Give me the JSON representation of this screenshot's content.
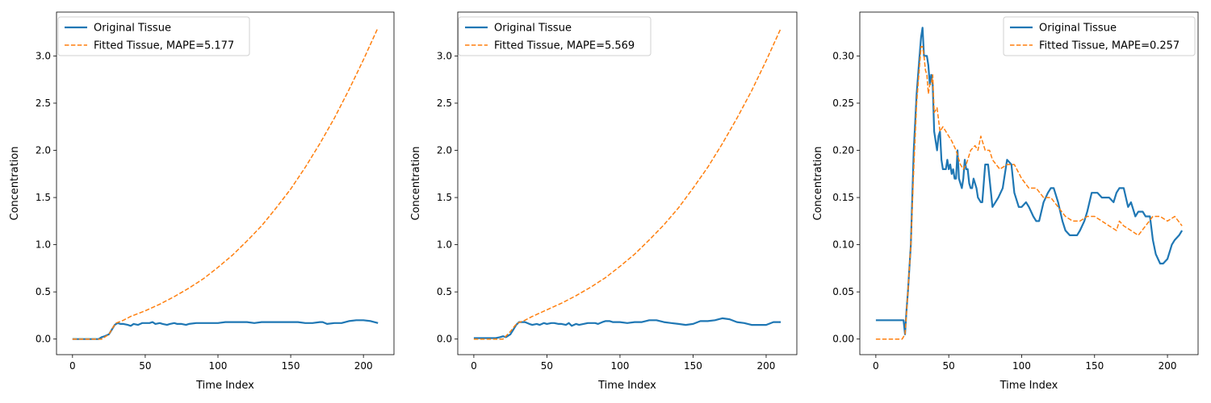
{
  "chart_data": [
    {
      "type": "line",
      "xlabel": "Time Index",
      "ylabel": "Concentration",
      "xlim": [
        -11,
        221
      ],
      "ylim": [
        -0.165,
        3.465
      ],
      "xticks": [
        0,
        50,
        100,
        150,
        200
      ],
      "xtick_labels": [
        "0",
        "50",
        "100",
        "150",
        "200"
      ],
      "yticks": [
        0,
        0.5,
        1.0,
        1.5,
        2.0,
        2.5,
        3.0
      ],
      "ytick_labels": [
        "0.0",
        "0.5",
        "1.0",
        "1.5",
        "2.0",
        "2.5",
        "3.0"
      ],
      "legend_position": "upper-left",
      "grid": false,
      "series": [
        {
          "name": "Original Tissue",
          "color": "#1f77b4",
          "style": "solid",
          "x": [
            0,
            5,
            10,
            15,
            18,
            20,
            22,
            25,
            27,
            29,
            31,
            33,
            35,
            38,
            40,
            42,
            45,
            48,
            50,
            53,
            55,
            57,
            60,
            62,
            65,
            67,
            70,
            72,
            75,
            78,
            80,
            85,
            90,
            95,
            100,
            105,
            110,
            115,
            120,
            125,
            130,
            135,
            140,
            145,
            150,
            155,
            160,
            165,
            170,
            172,
            175,
            180,
            185,
            190,
            195,
            200,
            205,
            210
          ],
          "y": [
            0.0,
            0.0,
            0.0,
            0.0,
            0.0,
            0.02,
            0.03,
            0.05,
            0.1,
            0.15,
            0.17,
            0.16,
            0.16,
            0.15,
            0.14,
            0.16,
            0.15,
            0.17,
            0.17,
            0.17,
            0.18,
            0.16,
            0.17,
            0.16,
            0.15,
            0.16,
            0.17,
            0.16,
            0.16,
            0.15,
            0.16,
            0.17,
            0.17,
            0.17,
            0.17,
            0.18,
            0.18,
            0.18,
            0.18,
            0.17,
            0.18,
            0.18,
            0.18,
            0.18,
            0.18,
            0.18,
            0.17,
            0.17,
            0.18,
            0.18,
            0.16,
            0.17,
            0.17,
            0.19,
            0.2,
            0.2,
            0.19,
            0.17
          ]
        },
        {
          "name": "Fitted Tissue, MAPE=5.177",
          "color": "#ff7f0e",
          "style": "dashed",
          "x": [
            0,
            10,
            20,
            25,
            28,
            30,
            35,
            40,
            50,
            60,
            70,
            80,
            90,
            100,
            110,
            120,
            130,
            140,
            150,
            160,
            170,
            180,
            190,
            200,
            210
          ],
          "y": [
            0.0,
            0.0,
            0.0,
            0.05,
            0.13,
            0.17,
            0.2,
            0.24,
            0.3,
            0.37,
            0.45,
            0.54,
            0.64,
            0.76,
            0.89,
            1.04,
            1.2,
            1.39,
            1.59,
            1.82,
            2.07,
            2.34,
            2.64,
            2.96,
            3.3
          ]
        }
      ]
    },
    {
      "type": "line",
      "xlabel": "Time Index",
      "ylabel": "Concentration",
      "xlim": [
        -11,
        221
      ],
      "ylim": [
        -0.165,
        3.465
      ],
      "xticks": [
        0,
        50,
        100,
        150,
        200
      ],
      "xtick_labels": [
        "0",
        "50",
        "100",
        "150",
        "200"
      ],
      "yticks": [
        0,
        0.5,
        1.0,
        1.5,
        2.0,
        2.5,
        3.0
      ],
      "ytick_labels": [
        "0.0",
        "0.5",
        "1.0",
        "1.5",
        "2.0",
        "2.5",
        "3.0"
      ],
      "legend_position": "upper-left",
      "grid": false,
      "series": [
        {
          "name": "Original Tissue",
          "color": "#1f77b4",
          "style": "solid",
          "x": [
            0,
            5,
            10,
            15,
            18,
            20,
            22,
            25,
            27,
            29,
            31,
            33,
            35,
            38,
            40,
            43,
            45,
            48,
            50,
            53,
            55,
            58,
            60,
            63,
            65,
            67,
            70,
            72,
            75,
            78,
            80,
            83,
            85,
            88,
            90,
            93,
            95,
            100,
            105,
            110,
            115,
            120,
            125,
            130,
            135,
            140,
            145,
            150,
            155,
            160,
            165,
            170,
            175,
            180,
            185,
            190,
            195,
            200,
            205,
            210
          ],
          "y": [
            0.01,
            0.01,
            0.01,
            0.01,
            0.02,
            0.03,
            0.02,
            0.05,
            0.1,
            0.15,
            0.18,
            0.18,
            0.18,
            0.16,
            0.15,
            0.16,
            0.15,
            0.17,
            0.16,
            0.17,
            0.17,
            0.16,
            0.16,
            0.15,
            0.17,
            0.14,
            0.16,
            0.15,
            0.16,
            0.17,
            0.17,
            0.17,
            0.16,
            0.18,
            0.19,
            0.19,
            0.18,
            0.18,
            0.17,
            0.18,
            0.18,
            0.2,
            0.2,
            0.18,
            0.17,
            0.16,
            0.15,
            0.16,
            0.19,
            0.19,
            0.2,
            0.22,
            0.21,
            0.18,
            0.17,
            0.15,
            0.15,
            0.15,
            0.18,
            0.18
          ]
        },
        {
          "name": "Fitted Tissue, MAPE=5.569",
          "color": "#ff7f0e",
          "style": "dashed",
          "x": [
            0,
            10,
            20,
            25,
            28,
            30,
            35,
            40,
            50,
            60,
            70,
            80,
            90,
            100,
            110,
            120,
            130,
            140,
            150,
            160,
            170,
            180,
            190,
            200,
            210
          ],
          "y": [
            0.0,
            0.0,
            0.0,
            0.08,
            0.14,
            0.17,
            0.2,
            0.24,
            0.31,
            0.38,
            0.46,
            0.55,
            0.65,
            0.77,
            0.9,
            1.05,
            1.21,
            1.39,
            1.6,
            1.82,
            2.07,
            2.34,
            2.63,
            2.95,
            3.29
          ]
        }
      ]
    },
    {
      "type": "line",
      "xlabel": "Time Index",
      "ylabel": "Concentration",
      "xlim": [
        -11,
        221
      ],
      "ylim": [
        -0.0165,
        0.3465
      ],
      "xticks": [
        0,
        50,
        100,
        150,
        200
      ],
      "xtick_labels": [
        "0",
        "50",
        "100",
        "150",
        "200"
      ],
      "yticks": [
        0,
        0.05,
        0.1,
        0.15,
        0.2,
        0.25,
        0.3
      ],
      "ytick_labels": [
        "0.00",
        "0.05",
        "0.10",
        "0.15",
        "0.20",
        "0.25",
        "0.30"
      ],
      "legend_position": "upper-right",
      "grid": false,
      "series": [
        {
          "name": "Original Tissue",
          "color": "#1f77b4",
          "style": "solid",
          "x": [
            0,
            5,
            10,
            15,
            18,
            19,
            20,
            21,
            22,
            24,
            26,
            28,
            30,
            31,
            32,
            33,
            34,
            35,
            36,
            37,
            38,
            39,
            40,
            42,
            43,
            44,
            45,
            46,
            48,
            49,
            50,
            51,
            52,
            53,
            54,
            55,
            56,
            57,
            58,
            59,
            60,
            61,
            62,
            63,
            64,
            65,
            66,
            67,
            68,
            69,
            70,
            72,
            73,
            75,
            77,
            80,
            82,
            84,
            87,
            90,
            93,
            95,
            98,
            100,
            103,
            105,
            108,
            110,
            112,
            115,
            118,
            120,
            122,
            125,
            128,
            130,
            133,
            135,
            138,
            140,
            143,
            145,
            148,
            150,
            152,
            155,
            158,
            160,
            163,
            165,
            167,
            170,
            173,
            175,
            178,
            180,
            183,
            185,
            188,
            190,
            192,
            195,
            197,
            200,
            203,
            205,
            208,
            210
          ],
          "y": [
            0.02,
            0.02,
            0.02,
            0.02,
            0.02,
            0.02,
            0.005,
            0.03,
            0.05,
            0.1,
            0.2,
            0.26,
            0.3,
            0.32,
            0.33,
            0.3,
            0.3,
            0.3,
            0.29,
            0.27,
            0.28,
            0.27,
            0.22,
            0.2,
            0.215,
            0.22,
            0.19,
            0.18,
            0.18,
            0.19,
            0.18,
            0.185,
            0.175,
            0.18,
            0.17,
            0.17,
            0.2,
            0.17,
            0.165,
            0.16,
            0.17,
            0.19,
            0.18,
            0.18,
            0.165,
            0.16,
            0.16,
            0.17,
            0.165,
            0.16,
            0.15,
            0.145,
            0.145,
            0.185,
            0.185,
            0.14,
            0.145,
            0.15,
            0.16,
            0.19,
            0.185,
            0.155,
            0.14,
            0.14,
            0.145,
            0.14,
            0.13,
            0.125,
            0.125,
            0.145,
            0.155,
            0.16,
            0.16,
            0.145,
            0.125,
            0.115,
            0.11,
            0.11,
            0.11,
            0.115,
            0.125,
            0.135,
            0.155,
            0.155,
            0.155,
            0.15,
            0.15,
            0.15,
            0.145,
            0.155,
            0.16,
            0.16,
            0.14,
            0.145,
            0.13,
            0.135,
            0.135,
            0.13,
            0.13,
            0.105,
            0.09,
            0.08,
            0.08,
            0.085,
            0.1,
            0.105,
            0.11,
            0.115
          ]
        },
        {
          "name": "Fitted Tissue, MAPE=0.257",
          "color": "#ff7f0e",
          "style": "dashed",
          "x": [
            0,
            5,
            10,
            15,
            18,
            20,
            22,
            24,
            26,
            28,
            30,
            31,
            32,
            33,
            34,
            35,
            36,
            37,
            38,
            39,
            40,
            42,
            44,
            46,
            48,
            50,
            52,
            55,
            58,
            60,
            62,
            65,
            68,
            70,
            72,
            75,
            78,
            80,
            85,
            90,
            95,
            100,
            105,
            110,
            115,
            120,
            125,
            130,
            135,
            140,
            145,
            150,
            155,
            160,
            165,
            167,
            170,
            175,
            180,
            185,
            190,
            195,
            200,
            205,
            210
          ],
          "y": [
            0.0,
            0.0,
            0.0,
            0.0,
            0.0,
            0.005,
            0.05,
            0.1,
            0.18,
            0.25,
            0.29,
            0.31,
            0.31,
            0.3,
            0.285,
            0.28,
            0.26,
            0.27,
            0.27,
            0.28,
            0.24,
            0.245,
            0.22,
            0.225,
            0.22,
            0.215,
            0.21,
            0.2,
            0.185,
            0.18,
            0.185,
            0.2,
            0.205,
            0.2,
            0.215,
            0.2,
            0.2,
            0.19,
            0.18,
            0.185,
            0.185,
            0.17,
            0.16,
            0.16,
            0.15,
            0.15,
            0.14,
            0.13,
            0.125,
            0.125,
            0.13,
            0.13,
            0.125,
            0.12,
            0.115,
            0.125,
            0.12,
            0.115,
            0.11,
            0.12,
            0.13,
            0.13,
            0.125,
            0.13,
            0.12
          ]
        }
      ]
    }
  ]
}
